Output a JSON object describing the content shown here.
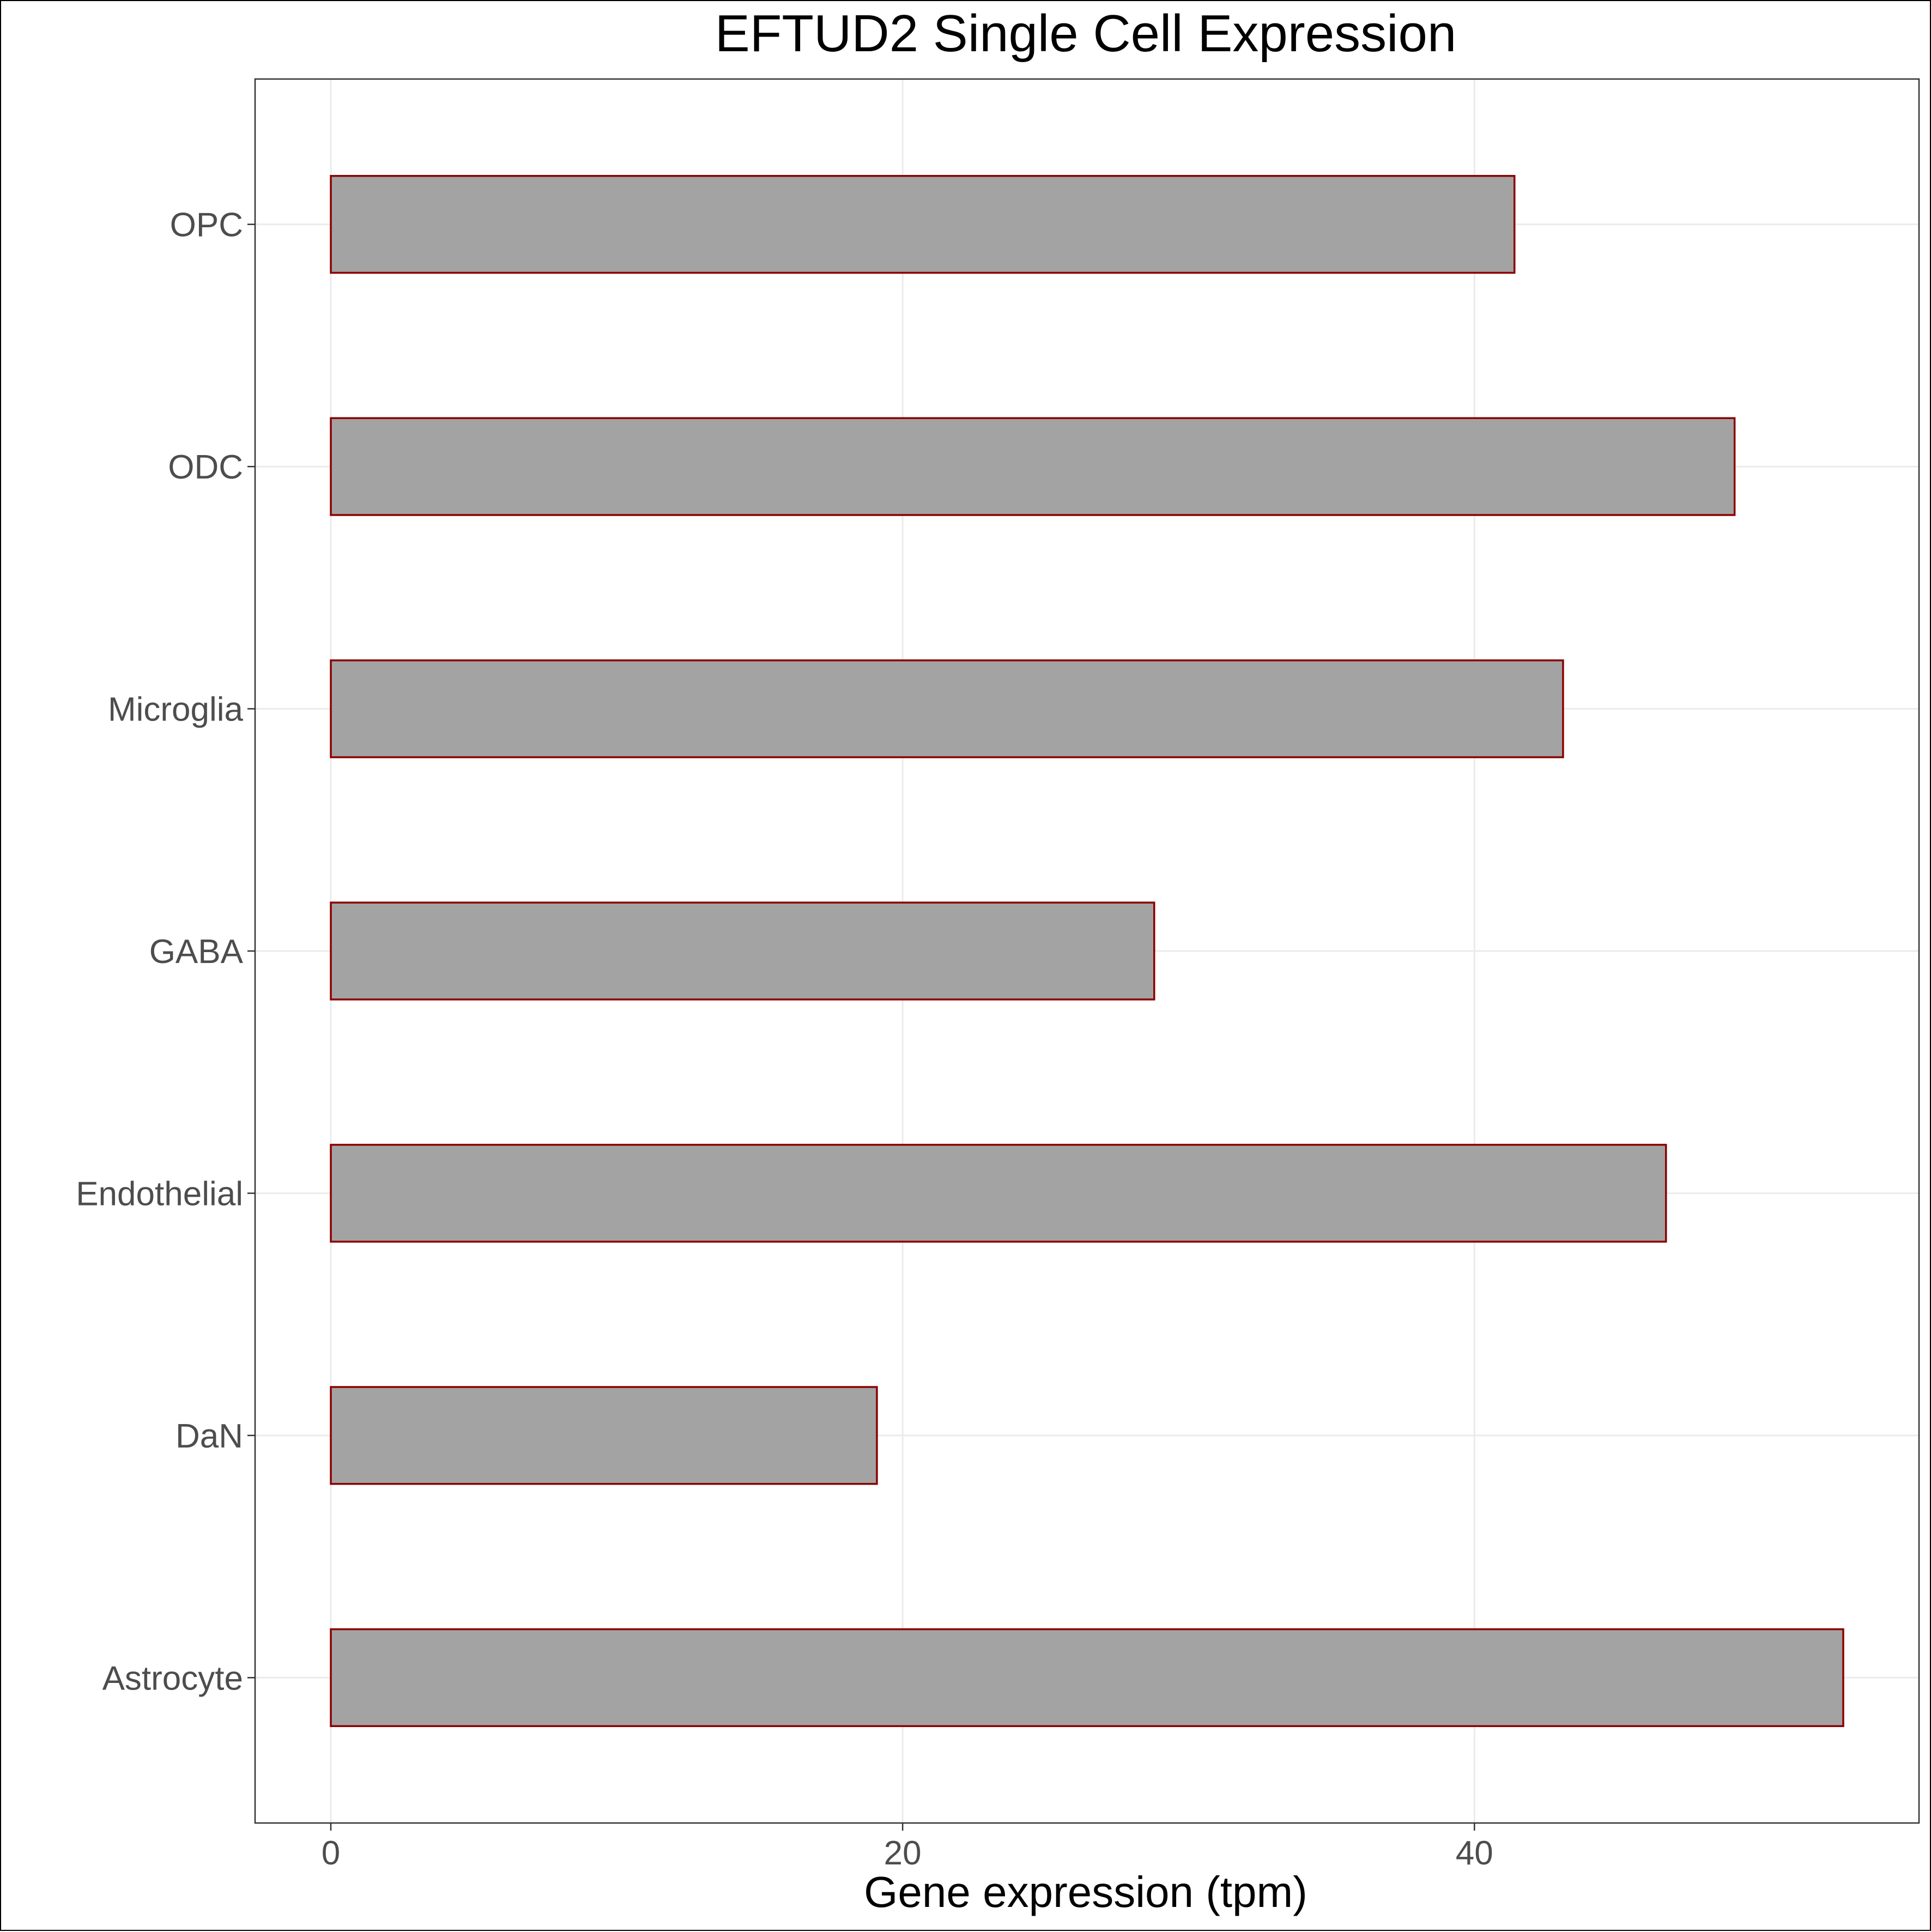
{
  "chart_data": {
    "type": "bar",
    "orientation": "horizontal",
    "title": "EFTUD2 Single Cell Expression",
    "xlabel": "Gene expression (tpm)",
    "ylabel": "",
    "categories": [
      "Astrocyte",
      "DaN",
      "Endothelial",
      "GABA",
      "Microglia",
      "ODC",
      "OPC"
    ],
    "values": [
      52.9,
      19.1,
      46.7,
      28.8,
      43.1,
      49.1,
      41.4
    ],
    "xlim": [
      -2.65,
      55.55
    ],
    "xticks": [
      0,
      20,
      40
    ],
    "grid": true,
    "legend": "none",
    "colors": {
      "bar_fill": "#a3a3a3",
      "bar_stroke": "#8b0000",
      "grid": "#ebebeb",
      "panel_border": "#333333",
      "tick_text": "#4d4d4d",
      "title_text": "#000000"
    }
  }
}
